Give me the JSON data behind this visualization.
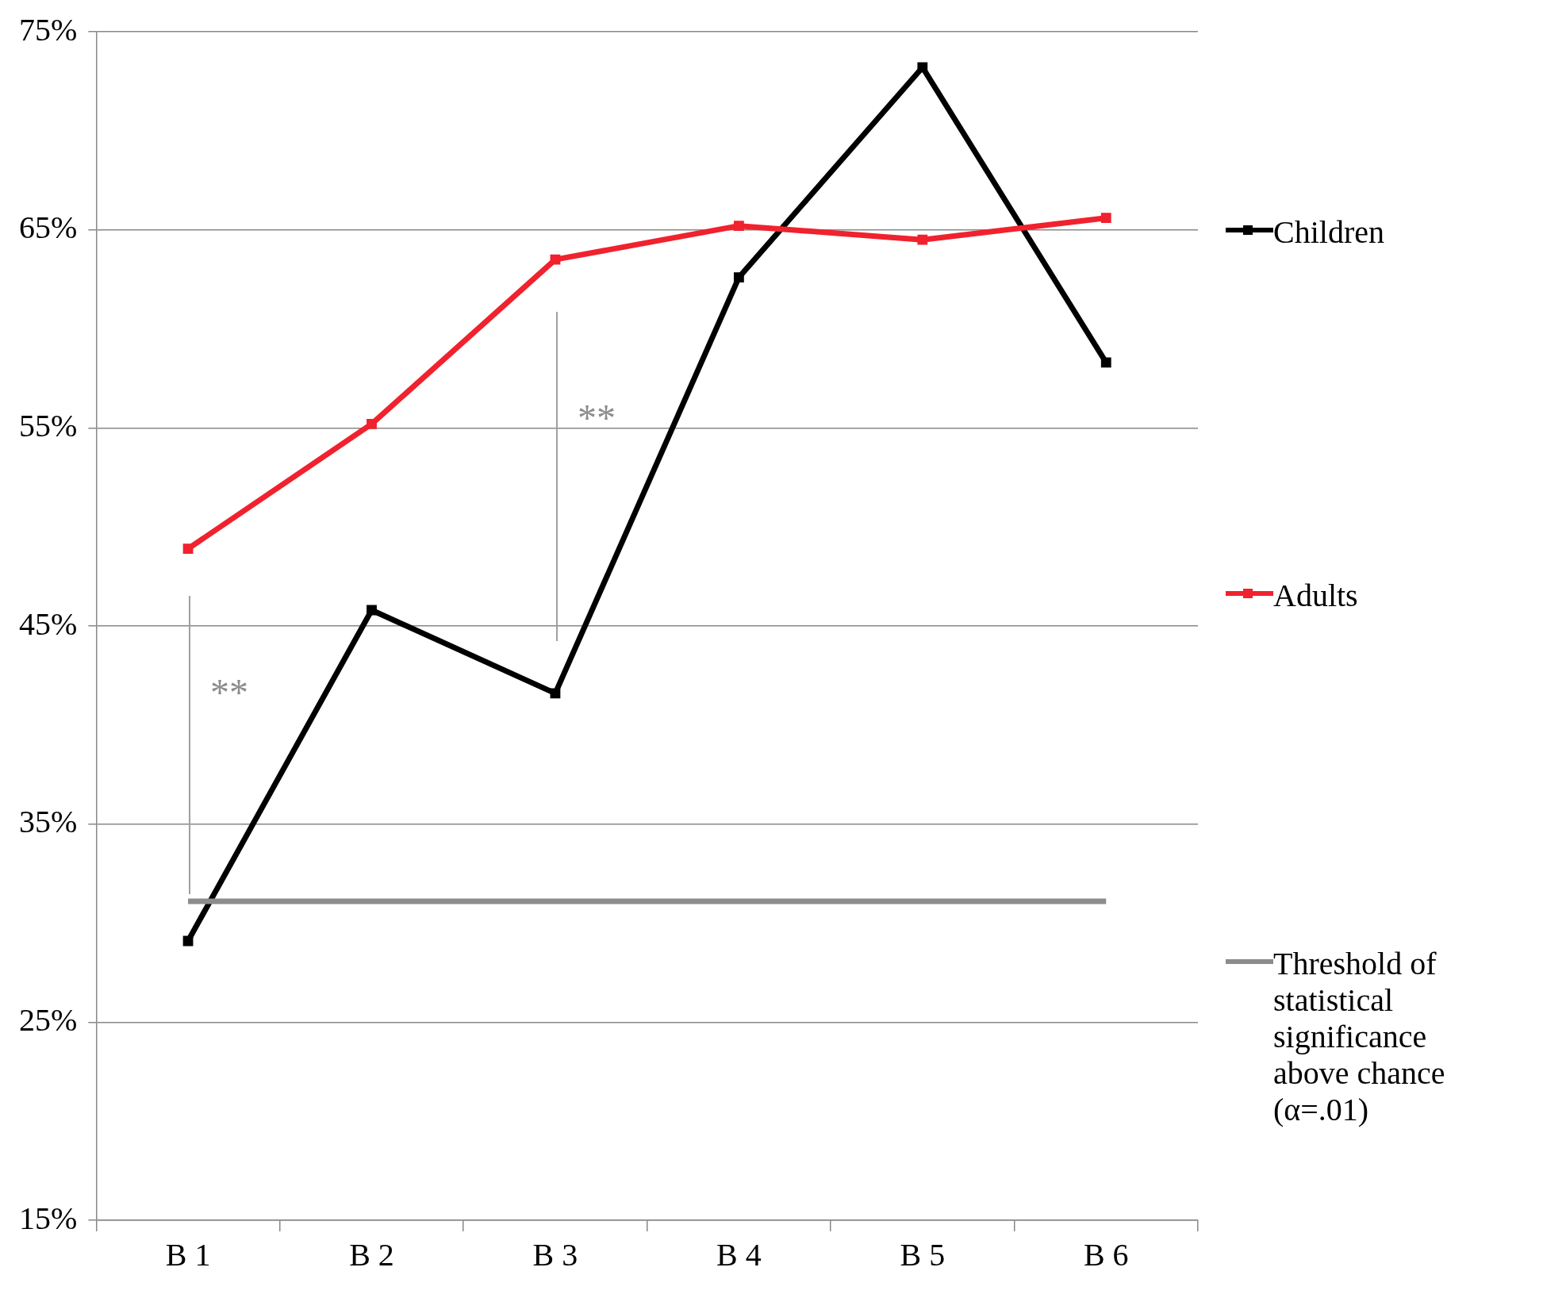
{
  "chart_data": {
    "type": "line",
    "categories": [
      "B 1",
      "B 2",
      "B 3",
      "B 4",
      "B 5",
      "B 6"
    ],
    "series": [
      {
        "name": "Children",
        "color": "#000000",
        "values": [
          29.1,
          45.8,
          41.6,
          62.6,
          73.2,
          58.3
        ],
        "marker": "square"
      },
      {
        "name": "Adults",
        "color": "#f0222e",
        "values": [
          48.9,
          55.2,
          63.5,
          65.2,
          64.5,
          65.6
        ],
        "marker": "square"
      },
      {
        "name": "Threshold of statistical significance above chance (α=.01)",
        "color": "#8c8c8c",
        "values": [
          31.1,
          31.1,
          31.1,
          31.1,
          31.1,
          31.1
        ],
        "marker": "none"
      }
    ],
    "ylim": [
      15,
      75
    ],
    "yticks": [
      {
        "value": 15,
        "label": "15%"
      },
      {
        "value": 25,
        "label": "25%"
      },
      {
        "value": 35,
        "label": "35%"
      },
      {
        "value": 45,
        "label": "45%"
      },
      {
        "value": 55,
        "label": "55%"
      },
      {
        "value": 65,
        "label": "65%"
      },
      {
        "value": 75,
        "label": "75%"
      }
    ],
    "grid": "y",
    "legend": "right",
    "line_style": "solid",
    "annotations": [
      "**",
      "**"
    ]
  }
}
